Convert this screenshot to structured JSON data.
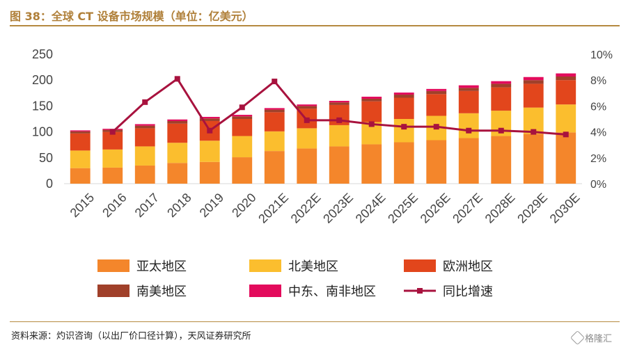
{
  "title": "图 38：全球 CT 设备市场规模（单位：亿美元）",
  "source": "资料来源：灼识咨询（以出厂价口径计算），天风证券研究所",
  "watermark": "格隆汇",
  "chart_data": {
    "type": "bar",
    "stacked": true,
    "categories": [
      "2015",
      "2016",
      "2017",
      "2018",
      "2019",
      "2020",
      "2021E",
      "2022E",
      "2023E",
      "2024E",
      "2025E",
      "2026E",
      "2027E",
      "2028E",
      "2029E",
      "2030E"
    ],
    "series": [
      {
        "name": "亚太地区",
        "color": "#F4862B",
        "values": [
          30,
          31,
          35,
          40,
          42,
          51,
          63,
          68,
          72,
          76,
          80,
          84,
          88,
          92,
          96,
          99
        ]
      },
      {
        "name": "北美地区",
        "color": "#FBBE2E",
        "values": [
          34,
          35,
          37,
          39,
          41,
          41,
          38,
          39,
          41,
          43,
          45,
          47,
          48,
          49,
          51,
          54
        ]
      },
      {
        "name": "欧洲地区",
        "color": "#E2461C",
        "values": [
          33,
          34,
          35,
          37,
          38,
          33,
          37,
          38,
          39,
          40,
          41,
          42,
          43,
          45,
          46,
          47
        ]
      },
      {
        "name": "南美地区",
        "color": "#A0402A",
        "values": [
          4,
          4,
          5,
          5,
          5,
          5,
          5,
          5,
          5,
          5,
          6,
          6,
          6,
          7,
          7,
          7
        ]
      },
      {
        "name": "中东、南非地区",
        "color": "#E30B5C",
        "values": [
          2,
          2,
          3,
          3,
          3,
          3,
          3,
          3,
          3,
          4,
          4,
          4,
          5,
          5,
          6,
          6
        ]
      }
    ],
    "line": {
      "name": "同比增速",
      "color": "#A8123E",
      "axis": "right",
      "unit": "%",
      "start_index": 1,
      "values": [
        4.0,
        6.3,
        8.1,
        4.1,
        5.9,
        7.9,
        4.9,
        4.9,
        4.6,
        4.4,
        4.4,
        4.1,
        4.1,
        4.0,
        3.8
      ]
    },
    "y_left": {
      "min": 0,
      "max": 250,
      "ticks": [
        "0",
        "50",
        "100",
        "150",
        "200",
        "250"
      ]
    },
    "y_right": {
      "min": 0,
      "max": 10,
      "ticks": [
        "0%",
        "2%",
        "4%",
        "6%",
        "8%",
        "10%"
      ]
    },
    "grid": false,
    "legend_position": "bottom"
  }
}
